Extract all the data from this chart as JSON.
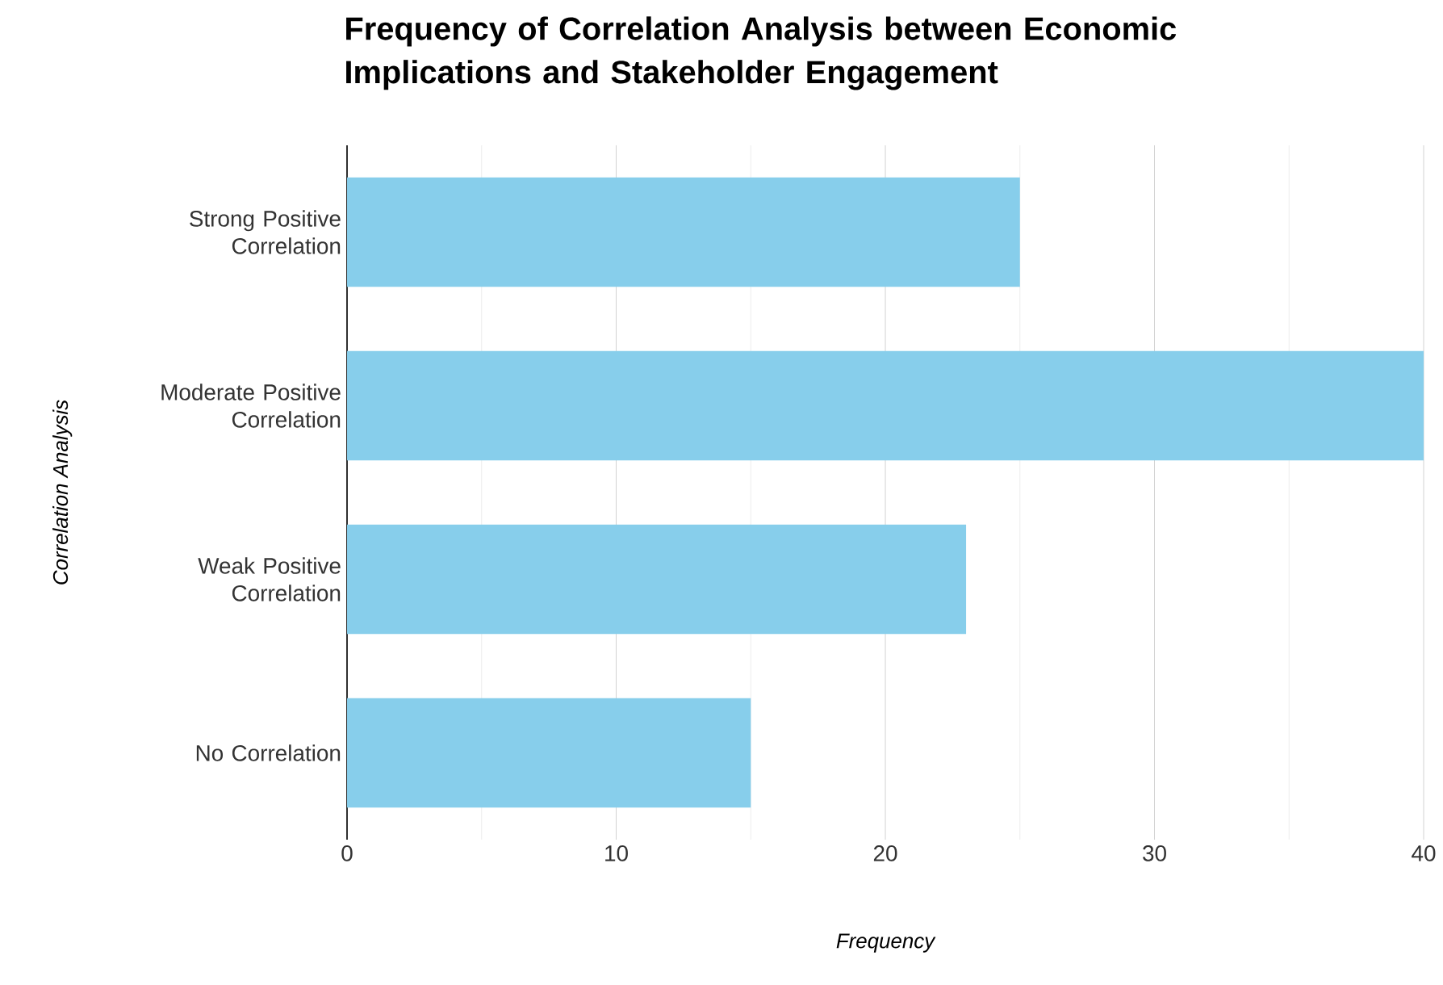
{
  "chart_data": {
    "type": "bar",
    "orientation": "horizontal",
    "title": "Frequency of Correlation Analysis between Economic Implications and Stakeholder Engagement",
    "xlabel": "Frequency",
    "ylabel": "Correlation Analysis",
    "categories": [
      "Strong Positive Correlation",
      "Moderate Positive Correlation",
      "Weak Positive Correlation",
      "No Correlation"
    ],
    "values": [
      25,
      40,
      23,
      15
    ],
    "color": "#87ceeb",
    "xlim": [
      0,
      40
    ],
    "xticks": [
      0,
      10,
      20,
      30,
      40
    ],
    "grid": "x"
  }
}
